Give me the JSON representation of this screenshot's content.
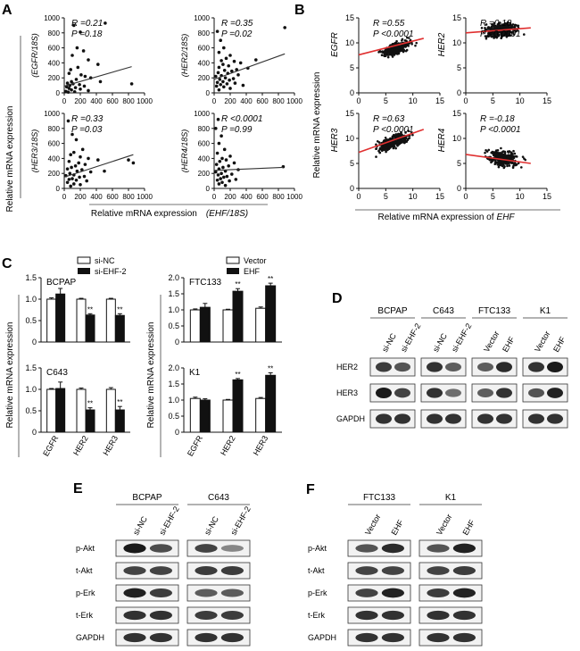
{
  "panels": {
    "A": "A",
    "B": "B",
    "C": "C",
    "D": "D",
    "E": "E",
    "F": "F"
  },
  "colors": {
    "point": "#111111",
    "fit_line_A": "#333333",
    "fit_line_B": "#e03030",
    "band": "#111111",
    "blot_bg": "#f2f2f2"
  },
  "panel_A": {
    "ylabel": "Relative mRNA expression",
    "xlabel_prefix": "Relative mRNA expression",
    "xlabel_gene": "(EHF/18S)",
    "subplots": [
      {
        "ylabel": "(EGFR/18S)",
        "r": "R =0.21",
        "p": "P =0.18"
      },
      {
        "ylabel": "(HER2/18S)",
        "r": "R =0.35",
        "p": "P =0.02"
      },
      {
        "ylabel": "(HER3/18S)",
        "r": "R =0.33",
        "p": "P =0.03"
      },
      {
        "ylabel": "(HER4/18S)",
        "r": "R <0.0001",
        "p": "P =0.99"
      }
    ]
  },
  "panel_B": {
    "ylabel": "Relative mRNA expression",
    "xlabel_prefix": "Relative mRNA expression of",
    "xlabel_gene": "EHF",
    "subplots": [
      {
        "gene": "EGFR",
        "r": "R =0.55",
        "p": "P <0.0001"
      },
      {
        "gene": "HER2",
        "r": "R =0.18",
        "p": "P <0.0001"
      },
      {
        "gene": "HER3",
        "r": "R =0.63",
        "p": "P <0.0001"
      },
      {
        "gene": "HER4",
        "r": "R =-0.18",
        "p": "P <0.0001"
      }
    ]
  },
  "chart_data": [
    {
      "panel": "A",
      "type": "scatter",
      "ylabel": "(EGFR/18S)",
      "xlim": [
        0,
        1000
      ],
      "ylim": [
        0,
        1000
      ],
      "xticks": [
        0,
        200,
        400,
        600,
        800,
        1000
      ],
      "yticks": [
        0,
        200,
        400,
        600,
        800,
        1000
      ],
      "points": [
        [
          120,
          900
        ],
        [
          510,
          930
        ],
        [
          200,
          810
        ],
        [
          160,
          600
        ],
        [
          240,
          560
        ],
        [
          100,
          500
        ],
        [
          300,
          440
        ],
        [
          420,
          380
        ],
        [
          170,
          340
        ],
        [
          80,
          310
        ],
        [
          60,
          260
        ],
        [
          210,
          240
        ],
        [
          260,
          220
        ],
        [
          330,
          200
        ],
        [
          150,
          180
        ],
        [
          90,
          150
        ],
        [
          40,
          130
        ],
        [
          110,
          120
        ],
        [
          190,
          110
        ],
        [
          70,
          100
        ],
        [
          250,
          90
        ],
        [
          30,
          80
        ],
        [
          140,
          70
        ],
        [
          60,
          60
        ],
        [
          200,
          50
        ],
        [
          90,
          40
        ],
        [
          300,
          30
        ],
        [
          20,
          20
        ],
        [
          130,
          15
        ],
        [
          50,
          10
        ],
        [
          840,
          120
        ],
        [
          450,
          150
        ]
      ],
      "fit": [
        [
          0,
          90
        ],
        [
          840,
          350
        ]
      ]
    },
    {
      "panel": "A",
      "type": "scatter",
      "ylabel": "(HER2/18S)",
      "xlim": [
        0,
        1000
      ],
      "ylim": [
        0,
        1000
      ],
      "xticks": [
        0,
        200,
        400,
        600,
        800,
        1000
      ],
      "yticks": [
        0,
        200,
        400,
        600,
        800,
        1000
      ],
      "points": [
        [
          40,
          820
        ],
        [
          80,
          700
        ],
        [
          120,
          600
        ],
        [
          60,
          540
        ],
        [
          200,
          500
        ],
        [
          150,
          460
        ],
        [
          90,
          430
        ],
        [
          250,
          420
        ],
        [
          330,
          400
        ],
        [
          110,
          380
        ],
        [
          180,
          360
        ],
        [
          60,
          340
        ],
        [
          420,
          330
        ],
        [
          280,
          310
        ],
        [
          130,
          300
        ],
        [
          220,
          290
        ],
        [
          50,
          270
        ],
        [
          170,
          260
        ],
        [
          300,
          240
        ],
        [
          90,
          230
        ],
        [
          20,
          220
        ],
        [
          140,
          200
        ],
        [
          240,
          190
        ],
        [
          70,
          180
        ],
        [
          190,
          170
        ],
        [
          110,
          150
        ],
        [
          40,
          140
        ],
        [
          260,
          130
        ],
        [
          160,
          120
        ],
        [
          80,
          110
        ],
        [
          360,
          100
        ],
        [
          30,
          90
        ],
        [
          120,
          80
        ],
        [
          200,
          60
        ],
        [
          60,
          40
        ],
        [
          880,
          870
        ],
        [
          520,
          440
        ]
      ],
      "fit": [
        [
          0,
          180
        ],
        [
          880,
          520
        ]
      ]
    },
    {
      "panel": "A",
      "type": "scatter",
      "ylabel": "(HER3/18S)",
      "xlim": [
        0,
        1000
      ],
      "ylim": [
        0,
        1000
      ],
      "xticks": [
        0,
        200,
        400,
        600,
        800,
        1000
      ],
      "yticks": [
        0,
        200,
        400,
        600,
        800,
        1000
      ],
      "points": [
        [
          50,
          900
        ],
        [
          100,
          720
        ],
        [
          150,
          650
        ],
        [
          230,
          520
        ],
        [
          120,
          480
        ],
        [
          80,
          450
        ],
        [
          200,
          420
        ],
        [
          300,
          400
        ],
        [
          420,
          380
        ],
        [
          60,
          360
        ],
        [
          180,
          340
        ],
        [
          260,
          320
        ],
        [
          140,
          300
        ],
        [
          90,
          280
        ],
        [
          40,
          260
        ],
        [
          220,
          250
        ],
        [
          160,
          230
        ],
        [
          330,
          220
        ],
        [
          70,
          200
        ],
        [
          120,
          180
        ],
        [
          20,
          170
        ],
        [
          250,
          160
        ],
        [
          190,
          150
        ],
        [
          100,
          130
        ],
        [
          60,
          120
        ],
        [
          150,
          110
        ],
        [
          280,
          100
        ],
        [
          40,
          80
        ],
        [
          120,
          60
        ],
        [
          200,
          50
        ],
        [
          80,
          30
        ],
        [
          800,
          380
        ],
        [
          500,
          230
        ],
        [
          860,
          340
        ]
      ],
      "fit": [
        [
          0,
          150
        ],
        [
          860,
          450
        ]
      ]
    },
    {
      "panel": "A",
      "type": "scatter",
      "ylabel": "(HER4/18S)",
      "xlim": [
        0,
        1000
      ],
      "ylim": [
        0,
        1000
      ],
      "xticks": [
        0,
        200,
        400,
        600,
        800,
        1000
      ],
      "yticks": [
        0,
        200,
        400,
        600,
        800,
        1000
      ],
      "points": [
        [
          50,
          920
        ],
        [
          20,
          800
        ],
        [
          90,
          700
        ],
        [
          60,
          600
        ],
        [
          130,
          520
        ],
        [
          40,
          470
        ],
        [
          200,
          430
        ],
        [
          100,
          400
        ],
        [
          150,
          380
        ],
        [
          70,
          360
        ],
        [
          250,
          340
        ],
        [
          30,
          320
        ],
        [
          180,
          300
        ],
        [
          110,
          280
        ],
        [
          60,
          260
        ],
        [
          300,
          250
        ],
        [
          140,
          230
        ],
        [
          20,
          220
        ],
        [
          90,
          200
        ],
        [
          220,
          190
        ],
        [
          50,
          180
        ],
        [
          160,
          160
        ],
        [
          120,
          150
        ],
        [
          80,
          130
        ],
        [
          270,
          120
        ],
        [
          40,
          110
        ],
        [
          190,
          100
        ],
        [
          100,
          80
        ],
        [
          60,
          60
        ],
        [
          140,
          40
        ],
        [
          860,
          290
        ]
      ],
      "fit": [
        [
          0,
          240
        ],
        [
          860,
          280
        ]
      ]
    },
    {
      "panel": "B",
      "type": "scatter",
      "gene": "EGFR",
      "xlim": [
        0,
        15
      ],
      "ylim": [
        0,
        15
      ],
      "xticks": [
        0,
        5,
        10,
        15
      ],
      "yticks": [
        0,
        5,
        10,
        15
      ],
      "cloud": {
        "x": [
          3,
          11
        ],
        "y_center": [
          7.6,
          10.3
        ],
        "spread": 1.1,
        "n": 320
      },
      "fit": [
        [
          0,
          7.6
        ],
        [
          12,
          10.9
        ]
      ]
    },
    {
      "panel": "B",
      "type": "scatter",
      "gene": "HER2",
      "xlim": [
        0,
        15
      ],
      "ylim": [
        0,
        15
      ],
      "xticks": [
        0,
        5,
        10,
        15
      ],
      "yticks": [
        0,
        5,
        10,
        15
      ],
      "cloud": {
        "x": [
          2,
          11
        ],
        "y_center": [
          12.1,
          12.9
        ],
        "spread": 1.3,
        "n": 320
      },
      "fit": [
        [
          0,
          12.0
        ],
        [
          12,
          13.0
        ]
      ]
    },
    {
      "panel": "B",
      "type": "scatter",
      "gene": "HER3",
      "xlim": [
        0,
        15
      ],
      "ylim": [
        0,
        15
      ],
      "xticks": [
        0,
        5,
        10,
        15
      ],
      "yticks": [
        0,
        5,
        10,
        15
      ],
      "cloud": {
        "x": [
          2,
          11
        ],
        "y_center": [
          7.5,
          11.3
        ],
        "spread": 1.2,
        "n": 320
      },
      "fit": [
        [
          0,
          7.2
        ],
        [
          12,
          11.8
        ]
      ]
    },
    {
      "panel": "B",
      "type": "scatter",
      "gene": "HER4",
      "xlim": [
        0,
        15
      ],
      "ylim": [
        0,
        15
      ],
      "xticks": [
        0,
        5,
        10,
        15
      ],
      "yticks": [
        0,
        5,
        10,
        15
      ],
      "cloud": {
        "x": [
          3,
          11
        ],
        "y_center": [
          6.6,
          5.3
        ],
        "spread": 1.4,
        "n": 320
      },
      "fit": [
        [
          0,
          6.8
        ],
        [
          12,
          5.0
        ]
      ]
    },
    {
      "panel": "C",
      "type": "bar",
      "cell": "BCPAP",
      "categories": [
        "EGFR",
        "HER2",
        "HER3"
      ],
      "ylim": [
        0,
        1.5
      ],
      "yticks": [
        "0",
        "0.5",
        "1.0",
        "1.5"
      ],
      "series": [
        {
          "name": "si-NC",
          "values": [
            1.0,
            1.0,
            1.0
          ],
          "err": [
            0.03,
            0.02,
            0.02
          ]
        },
        {
          "name": "si-EHF-2",
          "values": [
            1.12,
            0.63,
            0.62
          ],
          "err": [
            0.13,
            0.03,
            0.04
          ]
        }
      ],
      "sig": [
        "",
        "**",
        "**"
      ]
    },
    {
      "panel": "C",
      "type": "bar",
      "cell": "C643",
      "categories": [
        "EGFR",
        "HER2",
        "HER3"
      ],
      "ylim": [
        0,
        1.5
      ],
      "yticks": [
        "0",
        "0.5",
        "1.0",
        "1.5"
      ],
      "series": [
        {
          "name": "si-NC",
          "values": [
            1.0,
            1.0,
            1.0
          ],
          "err": [
            0.02,
            0.03,
            0.04
          ]
        },
        {
          "name": "si-EHF-2",
          "values": [
            1.02,
            0.52,
            0.52
          ],
          "err": [
            0.15,
            0.05,
            0.08
          ]
        }
      ],
      "sig": [
        "",
        "**",
        "**"
      ]
    },
    {
      "panel": "C",
      "type": "bar",
      "cell": "FTC133",
      "categories": [
        "EGFR",
        "HER2",
        "HER3"
      ],
      "ylim": [
        0,
        2.0
      ],
      "yticks": [
        "0",
        "0.5",
        "1.0",
        "1.5",
        "2.0"
      ],
      "series": [
        {
          "name": "Vector",
          "values": [
            1.0,
            1.0,
            1.05
          ],
          "err": [
            0.03,
            0.02,
            0.04
          ]
        },
        {
          "name": "EHF",
          "values": [
            1.08,
            1.58,
            1.75
          ],
          "err": [
            0.12,
            0.08,
            0.08
          ]
        }
      ],
      "sig": [
        "",
        "**",
        "**"
      ]
    },
    {
      "panel": "C",
      "type": "bar",
      "cell": "K1",
      "categories": [
        "EGFR",
        "HER2",
        "HER3"
      ],
      "ylim": [
        0,
        2.0
      ],
      "yticks": [
        "0",
        "0.5",
        "1.0",
        "1.5",
        "2.0"
      ],
      "series": [
        {
          "name": "Vector",
          "values": [
            1.05,
            1.0,
            1.05
          ],
          "err": [
            0.04,
            0.02,
            0.03
          ]
        },
        {
          "name": "EHF",
          "values": [
            1.0,
            1.63,
            1.77
          ],
          "err": [
            0.04,
            0.04,
            0.08
          ]
        }
      ],
      "sig": [
        "",
        "**",
        "**"
      ]
    }
  ],
  "panel_C": {
    "ylabel_left": "Relative mRNA expression",
    "ylabel_right": "Relative mRNA expression",
    "legend_left": [
      "si-NC",
      "si-EHF-2"
    ],
    "legend_right": [
      "Vector",
      "EHF"
    ]
  },
  "panel_D": {
    "groups": [
      "BCPAP",
      "C643",
      "FTC133",
      "K1"
    ],
    "lanes": [
      "si-NC",
      "si-EHF-2",
      "si-NC",
      "si-EHF-2",
      "Vector",
      "EHF",
      "Vector",
      "EHF"
    ],
    "rows": [
      "HER2",
      "HER3",
      "GAPDH"
    ],
    "intensity": [
      [
        0.75,
        0.6,
        0.8,
        0.55,
        0.55,
        0.85,
        0.8,
        0.95
      ],
      [
        0.95,
        0.7,
        0.8,
        0.45,
        0.55,
        0.8,
        0.6,
        0.9
      ],
      [
        0.8,
        0.8,
        0.8,
        0.8,
        0.8,
        0.8,
        0.8,
        0.8
      ]
    ]
  },
  "panel_E": {
    "groups": [
      "BCPAP",
      "C643"
    ],
    "lanes": [
      "si-NC",
      "si-EHF-2",
      "si-NC",
      "si-EHF-2"
    ],
    "rows": [
      "p-Akt",
      "t-Akt",
      "p-Erk",
      "t-Erk",
      "GAPDH"
    ],
    "intensity": [
      [
        0.95,
        0.65,
        0.7,
        0.3
      ],
      [
        0.7,
        0.7,
        0.75,
        0.75
      ],
      [
        0.9,
        0.75,
        0.55,
        0.55
      ],
      [
        0.8,
        0.8,
        0.75,
        0.75
      ],
      [
        0.8,
        0.8,
        0.8,
        0.8
      ]
    ]
  },
  "panel_F": {
    "groups": [
      "FTC133",
      "K1"
    ],
    "lanes": [
      "Vector",
      "EHF",
      "Vector",
      "EHF"
    ],
    "rows": [
      "p-Akt",
      "t-Akt",
      "p-Erk",
      "t-Erk",
      "GAPDH"
    ],
    "intensity": [
      [
        0.6,
        0.85,
        0.6,
        0.9
      ],
      [
        0.7,
        0.7,
        0.7,
        0.75
      ],
      [
        0.7,
        0.9,
        0.75,
        0.9
      ],
      [
        0.8,
        0.8,
        0.8,
        0.8
      ],
      [
        0.8,
        0.8,
        0.8,
        0.8
      ]
    ]
  }
}
